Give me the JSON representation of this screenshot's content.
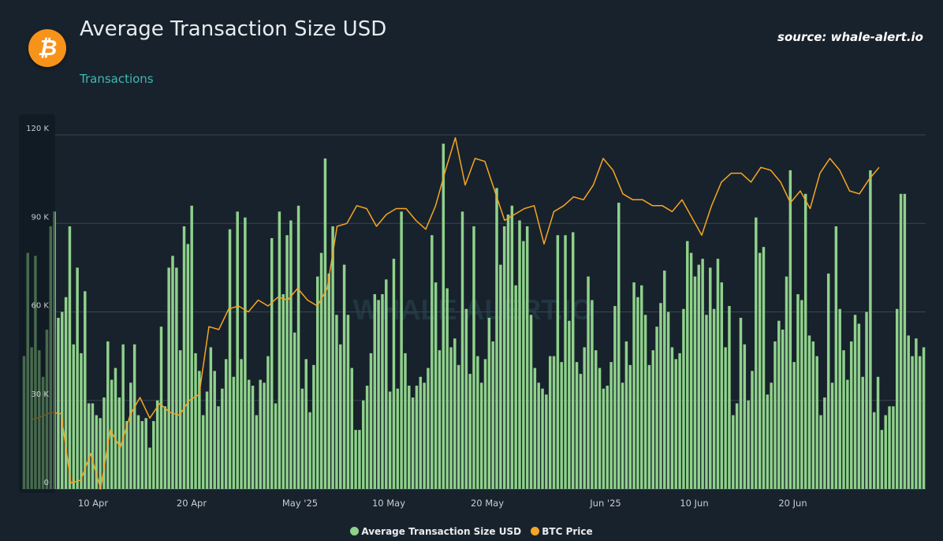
{
  "header": {
    "logo_glyph": "₿",
    "title": "Average Transaction Size USD",
    "subtitle": "Transactions",
    "source": "source: whale-alert.io"
  },
  "legend": {
    "items": [
      {
        "label": "Average Transaction Size USD",
        "color": "#8fd18b"
      },
      {
        "label": "BTC Price",
        "color": "#f5a623"
      }
    ]
  },
  "chart_data": {
    "type": "bar",
    "title": "Average Transaction Size USD",
    "ylim": [
      0,
      120000
    ],
    "y_ticks": [
      0,
      30000,
      60000,
      90000,
      120000
    ],
    "y_tick_labels": [
      "0",
      "30 K",
      "60 K",
      "90 K",
      "120 K"
    ],
    "x_tick_labels": [
      {
        "label": "10 Apr",
        "day": 6
      },
      {
        "label": "20 Apr",
        "day": 16
      },
      {
        "label": "May '25",
        "day": 27
      },
      {
        "label": "10 May",
        "day": 36
      },
      {
        "label": "20 May",
        "day": 46
      },
      {
        "label": "Jun '25",
        "day": 58
      },
      {
        "label": "10 Jun",
        "day": 67
      },
      {
        "label": "20 Jun",
        "day": 77
      }
    ],
    "watermark": "WHALE ALERT.IO",
    "grid": true,
    "legend_position": "bottom",
    "series": [
      {
        "name": "Average Transaction Size USD",
        "type": "bar",
        "color": "#8fd18b",
        "values": [
          45000,
          80000,
          48000,
          79000,
          47000,
          38000,
          54000,
          89000,
          94000,
          58000,
          60000,
          65000,
          89000,
          49000,
          75000,
          46000,
          67000,
          29000,
          29000,
          25000,
          24000,
          31000,
          50000,
          37000,
          41000,
          31000,
          49000,
          23000,
          36000,
          49000,
          25000,
          23000,
          24000,
          14000,
          23000,
          30000,
          55000,
          28000,
          75000,
          79000,
          75000,
          47000,
          89000,
          83000,
          96000,
          46000,
          40000,
          25000,
          33000,
          48000,
          40000,
          28000,
          34000,
          44000,
          88000,
          38000,
          94000,
          44000,
          92000,
          37000,
          35000,
          25000,
          37000,
          36000,
          45000,
          85000,
          29000,
          94000,
          66000,
          86000,
          91000,
          53000,
          96000,
          34000,
          44000,
          26000,
          42000,
          72000,
          80000,
          112000,
          73000,
          89000,
          59000,
          49000,
          76000,
          59000,
          41000,
          20000,
          20000,
          30000,
          35000,
          46000,
          66000,
          64000,
          66000,
          71000,
          33000,
          78000,
          34000,
          94000,
          46000,
          35000,
          31000,
          35000,
          38000,
          36000,
          41000,
          86000,
          70000,
          47000,
          117000,
          68000,
          48000,
          51000,
          42000,
          94000,
          61000,
          39000,
          89000,
          45000,
          36000,
          44000,
          58000,
          50000,
          102000,
          76000,
          89000,
          93000,
          96000,
          69000,
          91000,
          84000,
          89000,
          59000,
          41000,
          36000,
          34000,
          32000,
          45000,
          45000,
          86000,
          43000,
          86000,
          57000,
          87000,
          43000,
          39000,
          48000,
          72000,
          64000,
          47000,
          41000,
          34000,
          35000,
          43000,
          62000,
          97000,
          36000,
          50000,
          42000,
          70000,
          65000,
          69000,
          59000,
          42000,
          47000,
          55000,
          63000,
          74000,
          60000,
          48000,
          44000,
          46000,
          61000,
          84000,
          80000,
          72000,
          76000,
          78000,
          59000,
          75000,
          61000,
          78000,
          70000,
          48000,
          62000,
          25000,
          29000,
          58000,
          49000,
          30000,
          40000,
          92000,
          80000,
          82000,
          32000,
          36000,
          50000,
          57000,
          54000,
          72000,
          108000,
          43000,
          66000,
          64000,
          100000,
          52000,
          50000,
          45000,
          25000,
          31000,
          73000,
          36000,
          89000,
          61000,
          47000,
          37000,
          50000,
          59000,
          56000,
          38000,
          60000,
          108000,
          26000,
          38000,
          20000,
          25000,
          28000,
          28000,
          61000,
          100000,
          100000,
          52000,
          45000,
          51000,
          45000,
          48000
        ],
        "note": "first seven values fall under the dimmed y-axis panel"
      },
      {
        "name": "BTC Price",
        "type": "line",
        "color": "#f5a623",
        "x_day": [
          0,
          1,
          2,
          3,
          4,
          5,
          6,
          7,
          8,
          9,
          10,
          11,
          12,
          13,
          14,
          15,
          16,
          17,
          18,
          19,
          20,
          21,
          22,
          23,
          24,
          25,
          26,
          27,
          28,
          29,
          30,
          31,
          32,
          33,
          34,
          35,
          36,
          37,
          38,
          39,
          40,
          41,
          42,
          43,
          44,
          45,
          46,
          47,
          48,
          49,
          50,
          51,
          52,
          53,
          54,
          55,
          56,
          57,
          58,
          59,
          60,
          61,
          62,
          63,
          64,
          65,
          66,
          67,
          68,
          69,
          70,
          71,
          72,
          73,
          74,
          75,
          76,
          77,
          78,
          79,
          80,
          81,
          82,
          83,
          84,
          85,
          86
        ],
        "values": [
          23500,
          24500,
          26000,
          25500,
          2000,
          3000,
          12000,
          0,
          20000,
          14000,
          25000,
          31000,
          24000,
          29000,
          26000,
          25000,
          30000,
          32000,
          55000,
          54000,
          61000,
          62000,
          60000,
          64000,
          62000,
          65000,
          64000,
          68000,
          64000,
          62000,
          68000,
          89000,
          90000,
          96000,
          95000,
          89000,
          93000,
          95000,
          95000,
          91000,
          88000,
          96000,
          108000,
          119000,
          103000,
          112000,
          111000,
          101000,
          91000,
          93000,
          95000,
          96000,
          83000,
          94000,
          96000,
          99000,
          98000,
          103000,
          112000,
          108000,
          100000,
          98000,
          98000,
          96000,
          96000,
          94000,
          98000,
          92000,
          86000,
          96000,
          104000,
          107000,
          107000,
          104000,
          109000,
          108000,
          104000,
          97000,
          101000,
          95000,
          107000,
          112000,
          108000,
          101000,
          100000,
          105000,
          109000
        ]
      }
    ]
  }
}
